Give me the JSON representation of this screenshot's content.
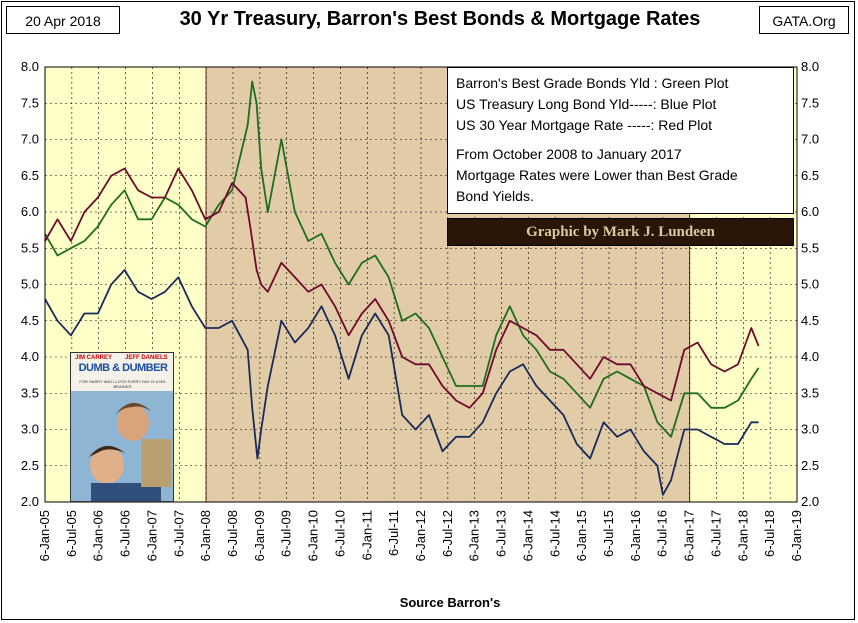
{
  "header": {
    "date": "20 Apr 2018",
    "title": "30 Yr Treasury, Barron's Best Bonds & Mortgage Rates",
    "site": "GATA.Org"
  },
  "notes": {
    "line1": "Barron's Best Grade Bonds Yld : Green Plot",
    "line2": "US Treasury Long Bond Yld-----: Blue Plot",
    "line3": "US 30 Year Mortgage Rate -----:  Red Plot",
    "line4": "From October 2008 to January 2017",
    "line5": "Mortgage Rates were Lower than Best Grade",
    "line6": "Bond Yields.",
    "credit": "Graphic by Mark J. Lundeen"
  },
  "poster": {
    "actor1": "JIM CARREY",
    "actor2": "JEFF DANIELS",
    "title": "DUMB & DUMBER",
    "tagline": "FOR HARRY AND LLOYD EVERY DAY IS A NO-BRAINER."
  },
  "chart_data": {
    "type": "line",
    "title": "30 Yr Treasury, Barron's Best Bonds & Mortgage Rates",
    "xlabel": "Source Barron's",
    "ylabel": "",
    "xlim": [
      "2005-01-06",
      "2019-01-06"
    ],
    "ylim": [
      2.0,
      8.0
    ],
    "y_ticks": [
      "2.0",
      "2.5",
      "3.0",
      "3.5",
      "4.0",
      "4.5",
      "5.0",
      "5.5",
      "6.0",
      "6.5",
      "7.0",
      "7.5",
      "8.0"
    ],
    "x_ticks": [
      "6-Jan-05",
      "6-Jul-05",
      "6-Jan-06",
      "6-Jul-06",
      "6-Jan-07",
      "6-Jul-07",
      "6-Jan-08",
      "6-Jul-08",
      "6-Jan-09",
      "6-Jul-09",
      "6-Jan-10",
      "6-Jul-10",
      "6-Jan-11",
      "6-Jul-11",
      "6-Jan-12",
      "6-Jul-12",
      "6-Jan-13",
      "6-Jul-13",
      "6-Jan-14",
      "6-Jul-14",
      "6-Jan-15",
      "6-Jul-15",
      "6-Jan-16",
      "6-Jul-16",
      "6-Jan-17",
      "6-Jul-17",
      "6-Jan-18",
      "6-Jul-18",
      "6-Jan-19"
    ],
    "shaded_periods": [
      {
        "from": "2005-01-06",
        "to": "2008-01-06",
        "color": "#ffffc8"
      },
      {
        "from": "2008-01-06",
        "to": "2017-01-06",
        "color": "#e2cca8"
      },
      {
        "from": "2017-01-06",
        "to": "2019-01-06",
        "color": "#ffffc8"
      }
    ],
    "grid": true,
    "series": [
      {
        "name": "Barron's Best Grade Bonds Yld",
        "color": "#1e6e1e",
        "x": [
          "2005-01-06",
          "2005-04-01",
          "2005-07-01",
          "2005-10-01",
          "2006-01-01",
          "2006-04-01",
          "2006-07-01",
          "2006-10-01",
          "2007-01-01",
          "2007-04-01",
          "2007-07-01",
          "2007-10-01",
          "2008-01-01",
          "2008-04-01",
          "2008-07-01",
          "2008-10-15",
          "2008-11-15",
          "2008-12-15",
          "2009-01-15",
          "2009-03-01",
          "2009-06-01",
          "2009-09-01",
          "2009-12-01",
          "2010-03-01",
          "2010-06-01",
          "2010-09-01",
          "2010-12-01",
          "2011-03-01",
          "2011-06-01",
          "2011-09-01",
          "2011-12-01",
          "2012-03-01",
          "2012-06-01",
          "2012-09-01",
          "2012-12-01",
          "2013-03-01",
          "2013-06-01",
          "2013-09-01",
          "2013-12-01",
          "2014-03-01",
          "2014-06-01",
          "2014-09-01",
          "2014-12-01",
          "2015-03-01",
          "2015-06-01",
          "2015-09-01",
          "2015-12-01",
          "2016-03-01",
          "2016-06-01",
          "2016-09-01",
          "2016-12-01",
          "2017-03-01",
          "2017-06-01",
          "2017-09-01",
          "2017-12-01",
          "2018-03-01",
          "2018-04-20"
        ],
        "y": [
          5.7,
          5.4,
          5.5,
          5.6,
          5.8,
          6.1,
          6.3,
          5.9,
          5.9,
          6.2,
          6.1,
          5.9,
          5.8,
          6.1,
          6.3,
          7.2,
          7.8,
          7.5,
          6.6,
          6.0,
          7.0,
          6.0,
          5.6,
          5.7,
          5.3,
          5.0,
          5.3,
          5.4,
          5.1,
          4.5,
          4.6,
          4.4,
          4.0,
          3.6,
          3.6,
          3.6,
          4.3,
          4.7,
          4.3,
          4.1,
          3.8,
          3.7,
          3.5,
          3.3,
          3.7,
          3.8,
          3.7,
          3.6,
          3.1,
          2.9,
          3.5,
          3.5,
          3.3,
          3.3,
          3.4,
          3.7,
          3.85
        ]
      },
      {
        "name": "US Treasury Long Bond Yld",
        "color": "#1a2a5a",
        "x": [
          "2005-01-06",
          "2005-04-01",
          "2005-07-01",
          "2005-10-01",
          "2006-01-01",
          "2006-04-01",
          "2006-07-01",
          "2006-10-01",
          "2007-01-01",
          "2007-04-01",
          "2007-07-01",
          "2007-10-01",
          "2008-01-01",
          "2008-04-01",
          "2008-07-01",
          "2008-10-15",
          "2008-11-15",
          "2008-12-20",
          "2009-01-15",
          "2009-03-01",
          "2009-06-01",
          "2009-09-01",
          "2009-12-01",
          "2010-03-01",
          "2010-06-01",
          "2010-09-01",
          "2010-12-01",
          "2011-03-01",
          "2011-06-01",
          "2011-09-01",
          "2011-12-01",
          "2012-03-01",
          "2012-06-01",
          "2012-09-01",
          "2012-12-01",
          "2013-03-01",
          "2013-06-01",
          "2013-09-01",
          "2013-12-01",
          "2014-03-01",
          "2014-06-01",
          "2014-09-01",
          "2014-12-01",
          "2015-03-01",
          "2015-06-01",
          "2015-09-01",
          "2015-12-01",
          "2016-03-01",
          "2016-06-01",
          "2016-07-08",
          "2016-09-01",
          "2016-12-01",
          "2017-03-01",
          "2017-06-01",
          "2017-09-01",
          "2017-12-01",
          "2018-03-01",
          "2018-04-20"
        ],
        "y": [
          4.8,
          4.5,
          4.3,
          4.6,
          4.6,
          5.0,
          5.2,
          4.9,
          4.8,
          4.9,
          5.1,
          4.7,
          4.4,
          4.4,
          4.5,
          4.1,
          3.3,
          2.6,
          3.0,
          3.6,
          4.5,
          4.2,
          4.4,
          4.7,
          4.3,
          3.7,
          4.3,
          4.6,
          4.3,
          3.2,
          3.0,
          3.2,
          2.7,
          2.9,
          2.9,
          3.1,
          3.5,
          3.8,
          3.9,
          3.6,
          3.4,
          3.2,
          2.8,
          2.6,
          3.1,
          2.9,
          3.0,
          2.7,
          2.5,
          2.1,
          2.3,
          3.0,
          3.0,
          2.9,
          2.8,
          2.8,
          3.1,
          3.1
        ]
      },
      {
        "name": "US 30 Year Mortgage Rate",
        "color": "#6e0a2a",
        "x": [
          "2005-01-06",
          "2005-04-01",
          "2005-07-01",
          "2005-10-01",
          "2006-01-01",
          "2006-04-01",
          "2006-07-01",
          "2006-10-01",
          "2007-01-01",
          "2007-04-01",
          "2007-07-01",
          "2007-10-01",
          "2008-01-01",
          "2008-04-01",
          "2008-07-01",
          "2008-10-01",
          "2008-11-01",
          "2008-12-15",
          "2009-01-15",
          "2009-03-01",
          "2009-06-01",
          "2009-09-01",
          "2009-12-01",
          "2010-03-01",
          "2010-06-01",
          "2010-09-01",
          "2010-12-01",
          "2011-03-01",
          "2011-06-01",
          "2011-09-01",
          "2011-12-01",
          "2012-03-01",
          "2012-06-01",
          "2012-09-01",
          "2012-12-01",
          "2013-03-01",
          "2013-06-01",
          "2013-09-01",
          "2013-12-01",
          "2014-03-01",
          "2014-06-01",
          "2014-09-01",
          "2014-12-01",
          "2015-03-01",
          "2015-06-01",
          "2015-09-01",
          "2015-12-01",
          "2016-03-01",
          "2016-06-01",
          "2016-09-01",
          "2016-12-01",
          "2017-03-01",
          "2017-06-01",
          "2017-09-01",
          "2017-12-01",
          "2018-03-01",
          "2018-04-20"
        ],
        "y": [
          5.6,
          5.9,
          5.6,
          6.0,
          6.2,
          6.5,
          6.6,
          6.3,
          6.2,
          6.2,
          6.6,
          6.3,
          5.9,
          6.0,
          6.4,
          6.2,
          5.8,
          5.2,
          5.0,
          4.9,
          5.3,
          5.1,
          4.9,
          5.0,
          4.7,
          4.3,
          4.6,
          4.8,
          4.5,
          4.0,
          3.9,
          3.9,
          3.6,
          3.4,
          3.3,
          3.5,
          4.1,
          4.5,
          4.4,
          4.3,
          4.1,
          4.1,
          3.9,
          3.7,
          4.0,
          3.9,
          3.9,
          3.6,
          3.5,
          3.4,
          4.1,
          4.2,
          3.9,
          3.8,
          3.9,
          4.4,
          4.15
        ]
      }
    ]
  }
}
